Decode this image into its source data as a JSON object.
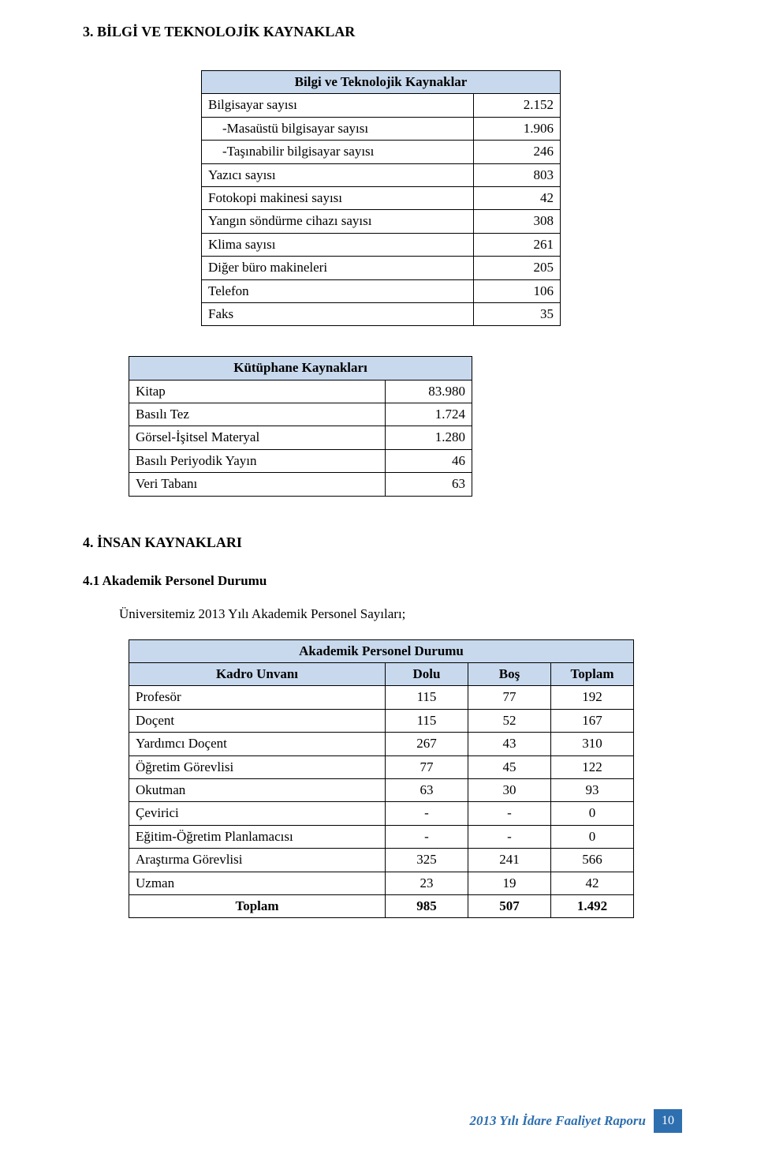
{
  "colors": {
    "header_fill": "#c8d9ed",
    "footer_text": "#2e6faf",
    "footer_box": "#2e6faf",
    "text": "#000000",
    "border": "#000000"
  },
  "section3": {
    "heading": "3.  BİLGİ VE TEKNOLOJİK KAYNAKLAR",
    "table": {
      "title": "Bilgi ve Teknolojik Kaynaklar",
      "rows": [
        {
          "label": "Bilgisayar sayısı",
          "value": "2.152",
          "indent": false
        },
        {
          "label": "-Masaüstü bilgisayar sayısı",
          "value": "1.906",
          "indent": true
        },
        {
          "label": "-Taşınabilir bilgisayar sayısı",
          "value": "246",
          "indent": true
        },
        {
          "label": "Yazıcı sayısı",
          "value": "803",
          "indent": false
        },
        {
          "label": "Fotokopi makinesi sayısı",
          "value": "42",
          "indent": false
        },
        {
          "label": "Yangın söndürme cihazı sayısı",
          "value": "308",
          "indent": false
        },
        {
          "label": "Klima sayısı",
          "value": "261",
          "indent": false
        },
        {
          "label": "Diğer büro makineleri",
          "value": "205",
          "indent": false
        },
        {
          "label": "Telefon",
          "value": "106",
          "indent": false
        },
        {
          "label": "Faks",
          "value": "35",
          "indent": false
        }
      ]
    },
    "table2": {
      "title": "Kütüphane Kaynakları",
      "rows": [
        {
          "label": "Kitap",
          "value": "83.980"
        },
        {
          "label": "Basılı Tez",
          "value": "1.724"
        },
        {
          "label": "Görsel-İşitsel Materyal",
          "value": "1.280"
        },
        {
          "label": "Basılı Periyodik Yayın",
          "value": "46"
        },
        {
          "label": "Veri Tabanı",
          "value": "63"
        }
      ]
    }
  },
  "section4": {
    "heading": "4.  İNSAN KAYNAKLARI",
    "sub1": {
      "title": "4.1 Akademik Personel Durumu",
      "intro": "Üniversitemiz 2013 Yılı Akademik Personel Sayıları;",
      "table": {
        "title": "Akademik Personel Durumu",
        "columns": [
          "Kadro Unvanı",
          "Dolu",
          "Boş",
          "Toplam"
        ],
        "rows": [
          {
            "label": "Profesör",
            "v": [
              "115",
              "77",
              "192"
            ],
            "bold": false
          },
          {
            "label": "Doçent",
            "v": [
              "115",
              "52",
              "167"
            ],
            "bold": false
          },
          {
            "label": "Yardımcı Doçent",
            "v": [
              "267",
              "43",
              "310"
            ],
            "bold": false
          },
          {
            "label": "Öğretim Görevlisi",
            "v": [
              "77",
              "45",
              "122"
            ],
            "bold": false
          },
          {
            "label": "Okutman",
            "v": [
              "63",
              "30",
              "93"
            ],
            "bold": false
          },
          {
            "label": "Çevirici",
            "v": [
              "-",
              "-",
              "0"
            ],
            "bold": false
          },
          {
            "label": "Eğitim-Öğretim Planlamacısı",
            "v": [
              "-",
              "-",
              "0"
            ],
            "bold": false
          },
          {
            "label": "Araştırma Görevlisi",
            "v": [
              "325",
              "241",
              "566"
            ],
            "bold": false
          },
          {
            "label": "Uzman",
            "v": [
              "23",
              "19",
              "42"
            ],
            "bold": false
          },
          {
            "label": "Toplam",
            "v": [
              "985",
              "507",
              "1.492"
            ],
            "bold": true,
            "center_label": true
          }
        ]
      }
    }
  },
  "footer": {
    "text": "2013 Yılı İdare Faaliyet Raporu",
    "page": "10"
  }
}
